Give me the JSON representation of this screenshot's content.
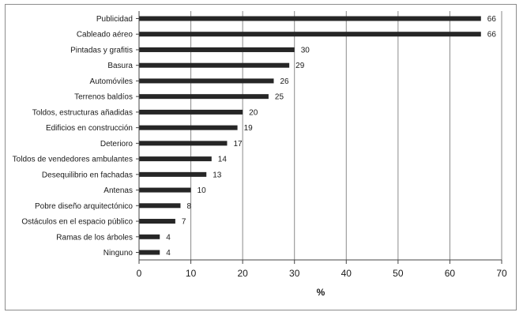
{
  "chart_data": {
    "type": "bar",
    "orientation": "horizontal",
    "title": "",
    "xlabel": "%",
    "ylabel": "",
    "xlim": [
      0,
      70
    ],
    "xticks": [
      0,
      10,
      20,
      30,
      40,
      50,
      60,
      70
    ],
    "grid": true,
    "legend": "none",
    "bar_color": "#262626",
    "categories": [
      "Publicidad",
      "Cableado aéreo",
      "Pintadas y grafitis",
      "Basura",
      "Automóviles",
      "Terrenos baldíos",
      "Toldos, estructuras añadidas",
      "Edificios en construcción",
      "Deterioro",
      "Toldos de vendedores ambulantes",
      "Desequilibrio en fachadas",
      "Antenas",
      "Pobre diseño arquitectónico",
      "Ostáculos en el espacio público",
      "Ramas de los árboles",
      "Ninguno"
    ],
    "values": [
      66,
      66,
      30,
      29,
      26,
      25,
      20,
      19,
      17,
      14,
      13,
      10,
      8,
      7,
      4,
      4
    ]
  }
}
